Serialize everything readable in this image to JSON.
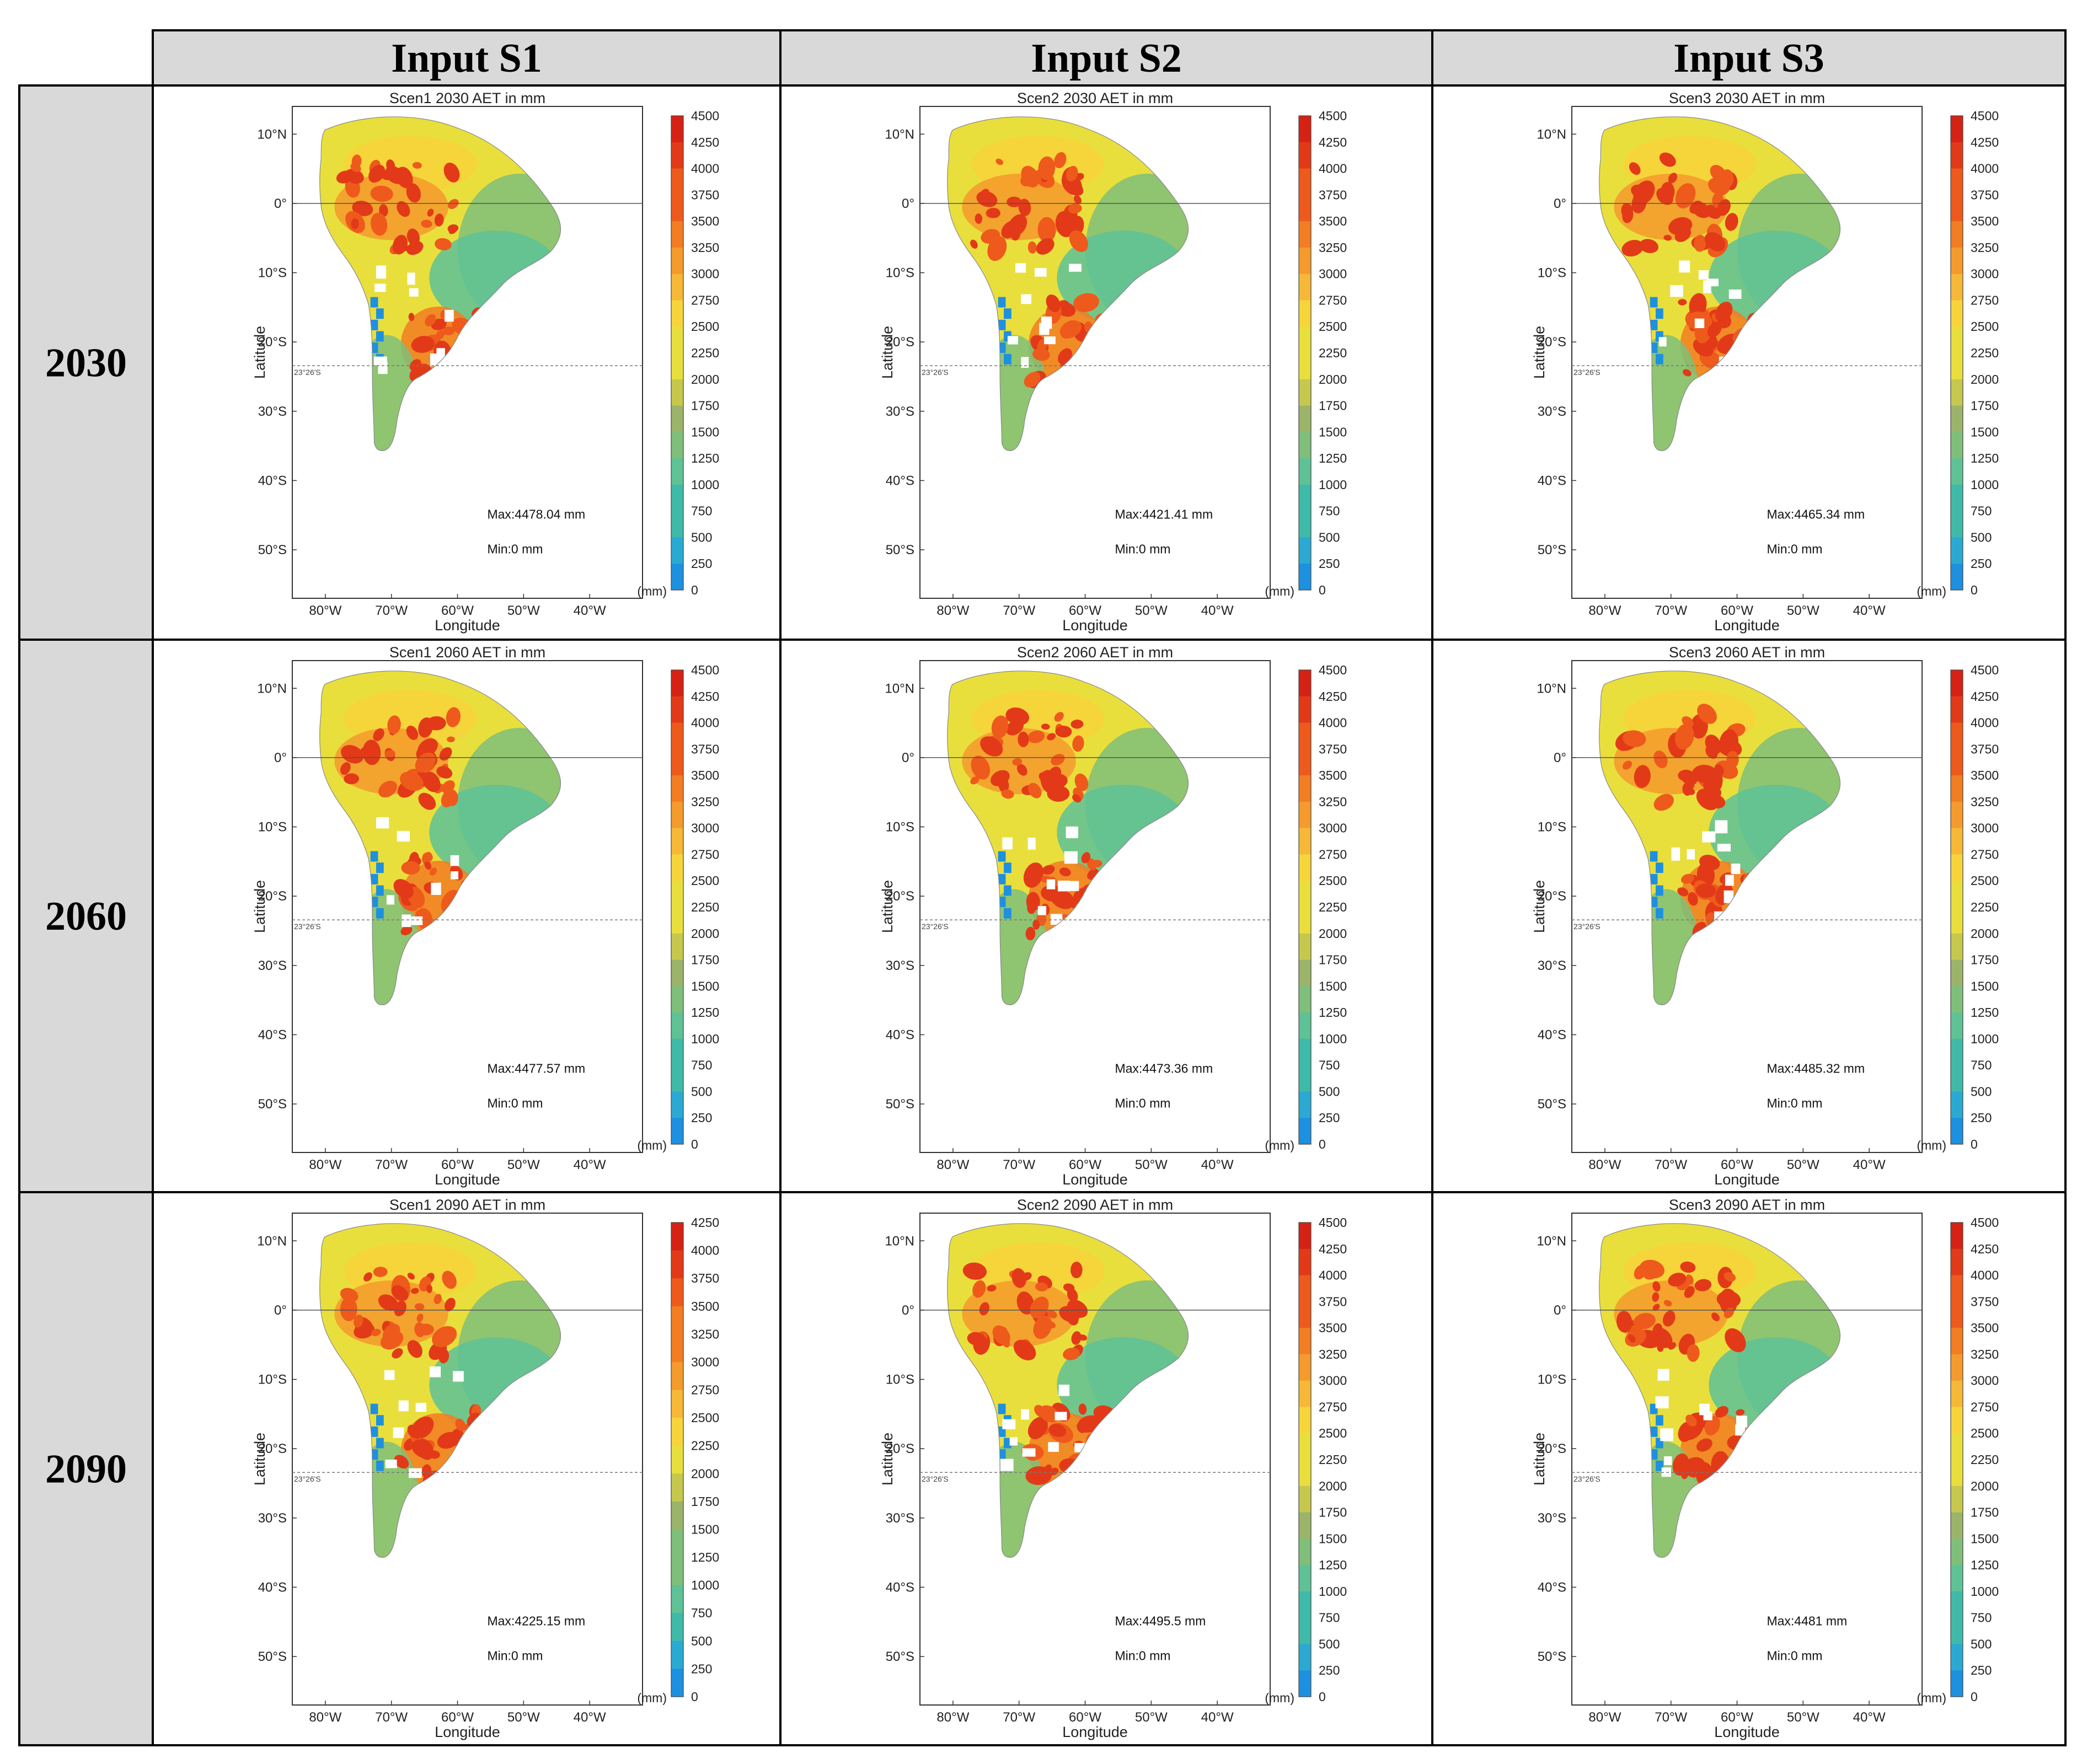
{
  "columns": [
    "Input S1",
    "Input S2",
    "Input S3"
  ],
  "rows": [
    "2030",
    "2060",
    "2090"
  ],
  "axes": {
    "lat_ticks": [
      "10°N",
      "0°",
      "10°S",
      "20°S",
      "30°S",
      "40°S",
      "50°S"
    ],
    "lon_ticks": [
      "80°W",
      "70°W",
      "60°W",
      "50°W",
      "40°W"
    ],
    "xlabel": "Longitude",
    "ylabel": "Latitude",
    "unit": "(mm)",
    "tropic_label": "23°26'S"
  },
  "colors": {
    "header_bg": "#d9d9d9",
    "map_fill": "#ffffff",
    "outline": "#777777",
    "scale": [
      "#1e90e0",
      "#2aaad2",
      "#3fbaa8",
      "#5ec296",
      "#7fbf7a",
      "#9cb46a",
      "#c6c84e",
      "#e9df3c",
      "#f7d43a",
      "#f6b836",
      "#f59a2c",
      "#f27d22",
      "#ee5a1c",
      "#e23a18",
      "#d62214"
    ]
  },
  "chart_data": [
    {
      "type": "heatmap",
      "title": "Scen1 2030 AET in mm",
      "column": "Input S1",
      "row": "2030",
      "max_label": "Max:4478.04 mm",
      "min_label": "Min:0 mm",
      "max_value": 4478.04,
      "min_value": 0,
      "colorbar": [
        "4500",
        "4250",
        "4000",
        "3750",
        "3500",
        "3250",
        "3000",
        "2750",
        "2500",
        "2250",
        "2000",
        "1750",
        "1500",
        "1250",
        "1000",
        "750",
        "500",
        "250",
        "0"
      ],
      "xlim": [
        -85,
        -32
      ],
      "ylim": [
        -57,
        14
      ]
    },
    {
      "type": "heatmap",
      "title": "Scen2 2030 AET in mm",
      "column": "Input S2",
      "row": "2030",
      "max_label": "Max:4421.41 mm",
      "min_label": "Min:0 mm",
      "max_value": 4421.41,
      "min_value": 0,
      "colorbar": [
        "4500",
        "4250",
        "4000",
        "3750",
        "3500",
        "3250",
        "3000",
        "2750",
        "2500",
        "2250",
        "2000",
        "1750",
        "1500",
        "1250",
        "1000",
        "750",
        "500",
        "250",
        "0"
      ],
      "xlim": [
        -85,
        -32
      ],
      "ylim": [
        -57,
        14
      ]
    },
    {
      "type": "heatmap",
      "title": "Scen3 2030 AET in mm",
      "column": "Input S3",
      "row": "2030",
      "max_label": "Max:4465.34 mm",
      "min_label": "Min:0 mm",
      "max_value": 4465.34,
      "min_value": 0,
      "colorbar": [
        "4500",
        "4250",
        "4000",
        "3750",
        "3500",
        "3250",
        "3000",
        "2750",
        "2500",
        "2250",
        "2000",
        "1750",
        "1500",
        "1250",
        "1000",
        "750",
        "500",
        "250",
        "0"
      ],
      "xlim": [
        -85,
        -32
      ],
      "ylim": [
        -57,
        14
      ]
    },
    {
      "type": "heatmap",
      "title": "Scen1 2060 AET in mm",
      "column": "Input S1",
      "row": "2060",
      "max_label": "Max:4477.57 mm",
      "min_label": "Min:0 mm",
      "max_value": 4477.57,
      "min_value": 0,
      "colorbar": [
        "4500",
        "4250",
        "4000",
        "3750",
        "3500",
        "3250",
        "3000",
        "2750",
        "2500",
        "2250",
        "2000",
        "1750",
        "1500",
        "1250",
        "1000",
        "750",
        "500",
        "250",
        "0"
      ],
      "xlim": [
        -85,
        -32
      ],
      "ylim": [
        -57,
        14
      ]
    },
    {
      "type": "heatmap",
      "title": "Scen2 2060 AET in mm",
      "column": "Input S2",
      "row": "2060",
      "max_label": "Max:4473.36 mm",
      "min_label": "Min:0 mm",
      "max_value": 4473.36,
      "min_value": 0,
      "colorbar": [
        "4500",
        "4250",
        "4000",
        "3750",
        "3500",
        "3250",
        "3000",
        "2750",
        "2500",
        "2250",
        "2000",
        "1750",
        "1500",
        "1250",
        "1000",
        "750",
        "500",
        "250",
        "0"
      ],
      "xlim": [
        -85,
        -32
      ],
      "ylim": [
        -57,
        14
      ]
    },
    {
      "type": "heatmap",
      "title": "Scen3 2060 AET in mm",
      "column": "Input S3",
      "row": "2060",
      "max_label": "Max:4485.32 mm",
      "min_label": "Min:0 mm",
      "max_value": 4485.32,
      "min_value": 0,
      "colorbar": [
        "4500",
        "4250",
        "4000",
        "3750",
        "3500",
        "3250",
        "3000",
        "2750",
        "2500",
        "2250",
        "2000",
        "1750",
        "1500",
        "1250",
        "1000",
        "750",
        "500",
        "250",
        "0"
      ],
      "xlim": [
        -85,
        -32
      ],
      "ylim": [
        -57,
        14
      ]
    },
    {
      "type": "heatmap",
      "title": "Scen1 2090 AET in mm",
      "column": "Input S1",
      "row": "2090",
      "max_label": "Max:4225.15 mm",
      "min_label": "Min:0 mm",
      "max_value": 4225.15,
      "min_value": 0,
      "colorbar": [
        "4250",
        "4000",
        "3750",
        "3500",
        "3250",
        "3000",
        "2750",
        "2500",
        "2250",
        "2000",
        "1750",
        "1500",
        "1250",
        "1000",
        "750",
        "500",
        "250",
        "0"
      ],
      "xlim": [
        -85,
        -32
      ],
      "ylim": [
        -57,
        14
      ]
    },
    {
      "type": "heatmap",
      "title": "Scen2 2090 AET in mm",
      "column": "Input S2",
      "row": "2090",
      "max_label": "Max:4495.5 mm",
      "min_label": "Min:0 mm",
      "max_value": 4495.5,
      "min_value": 0,
      "colorbar": [
        "4500",
        "4250",
        "4000",
        "3750",
        "3500",
        "3250",
        "3000",
        "2750",
        "2500",
        "2250",
        "2000",
        "1750",
        "1500",
        "1250",
        "1000",
        "750",
        "500",
        "250",
        "0"
      ],
      "xlim": [
        -85,
        -32
      ],
      "ylim": [
        -57,
        14
      ]
    },
    {
      "type": "heatmap",
      "title": "Scen3 2090 AET in mm",
      "column": "Input S3",
      "row": "2090",
      "max_label": "Max:4481 mm",
      "min_label": "Min:0 mm",
      "max_value": 4481,
      "min_value": 0,
      "colorbar": [
        "4500",
        "4250",
        "4000",
        "3750",
        "3500",
        "3250",
        "3000",
        "2750",
        "2500",
        "2250",
        "2000",
        "1750",
        "1500",
        "1250",
        "1000",
        "750",
        "500",
        "250",
        "0"
      ],
      "xlim": [
        -85,
        -32
      ],
      "ylim": [
        -57,
        14
      ]
    }
  ]
}
